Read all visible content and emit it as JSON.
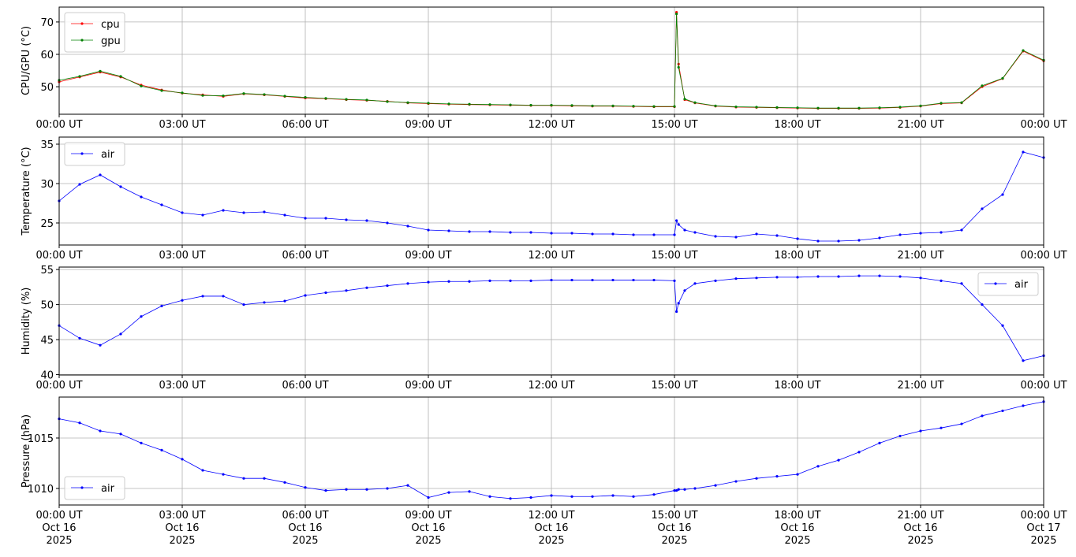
{
  "chart_data": [
    {
      "type": "line",
      "ylabel": "CPU/GPU (°C)",
      "grid": true,
      "legend": "upper left",
      "xlim": [
        "2025-10-16T00:00",
        "2025-10-17T00:00"
      ],
      "xticks": [
        {
          "value": "2025-10-16T00:00",
          "label": "00:00 UT"
        },
        {
          "value": "2025-10-16T03:00",
          "label": "03:00 UT"
        },
        {
          "value": "2025-10-16T06:00",
          "label": "06:00 UT"
        },
        {
          "value": "2025-10-16T09:00",
          "label": "09:00 UT"
        },
        {
          "value": "2025-10-16T12:00",
          "label": "12:00 UT"
        },
        {
          "value": "2025-10-16T15:00",
          "label": "15:00 UT"
        },
        {
          "value": "2025-10-16T18:00",
          "label": "18:00 UT"
        },
        {
          "value": "2025-10-16T21:00",
          "label": "21:00 UT"
        },
        {
          "value": "2025-10-17T00:00",
          "label": "00:00 UT"
        }
      ],
      "ylim": [
        41.5,
        74.6
      ],
      "yticks": [
        50,
        60,
        70
      ],
      "x": [
        "2025-10-16T00:00",
        "2025-10-16T00:30",
        "2025-10-16T01:00",
        "2025-10-16T01:30",
        "2025-10-16T02:00",
        "2025-10-16T02:30",
        "2025-10-16T03:00",
        "2025-10-16T03:30",
        "2025-10-16T04:00",
        "2025-10-16T04:30",
        "2025-10-16T05:00",
        "2025-10-16T05:30",
        "2025-10-16T06:00",
        "2025-10-16T06:30",
        "2025-10-16T07:00",
        "2025-10-16T07:30",
        "2025-10-16T08:00",
        "2025-10-16T08:30",
        "2025-10-16T09:00",
        "2025-10-16T09:30",
        "2025-10-16T10:00",
        "2025-10-16T10:30",
        "2025-10-16T11:00",
        "2025-10-16T11:30",
        "2025-10-16T12:00",
        "2025-10-16T12:30",
        "2025-10-16T13:00",
        "2025-10-16T13:30",
        "2025-10-16T14:00",
        "2025-10-16T14:30",
        "2025-10-16T15:00",
        "2025-10-16T15:03",
        "2025-10-16T15:06",
        "2025-10-16T15:15",
        "2025-10-16T15:30",
        "2025-10-16T16:00",
        "2025-10-16T16:30",
        "2025-10-16T17:00",
        "2025-10-16T17:30",
        "2025-10-16T18:00",
        "2025-10-16T18:30",
        "2025-10-16T19:00",
        "2025-10-16T19:30",
        "2025-10-16T20:00",
        "2025-10-16T20:30",
        "2025-10-16T21:00",
        "2025-10-16T21:30",
        "2025-10-16T22:00",
        "2025-10-16T22:30",
        "2025-10-16T23:00",
        "2025-10-16T23:30",
        "2025-10-17T00:00"
      ],
      "series": [
        {
          "name": "cpu",
          "color": "#ff0000",
          "values": [
            51.5,
            53,
            54.5,
            53,
            50.5,
            49,
            48,
            47.5,
            47,
            47.8,
            47.5,
            47,
            46.5,
            46.3,
            46,
            45.8,
            45.5,
            45,
            44.8,
            44.6,
            44.5,
            44.4,
            44.3,
            44.2,
            44.2,
            44.1,
            44,
            44,
            43.9,
            43.8,
            43.8,
            73,
            57,
            46,
            45,
            44,
            43.7,
            43.6,
            43.5,
            43.4,
            43.3,
            43.3,
            43.3,
            43.4,
            43.6,
            44,
            44.8,
            45,
            50,
            52.5,
            61,
            58
          ]
        },
        {
          "name": "gpu",
          "color": "#008000",
          "values": [
            52,
            53.2,
            54.8,
            53.2,
            50.2,
            48.8,
            48.1,
            47.3,
            47.2,
            47.9,
            47.6,
            47.1,
            46.7,
            46.4,
            46.1,
            45.9,
            45.4,
            45.1,
            44.9,
            44.7,
            44.6,
            44.5,
            44.4,
            44.3,
            44.3,
            44.2,
            44.1,
            44.1,
            44,
            43.9,
            43.9,
            72.5,
            56,
            46.2,
            45.1,
            44.1,
            43.8,
            43.7,
            43.6,
            43.5,
            43.4,
            43.4,
            43.4,
            43.5,
            43.7,
            44.1,
            44.9,
            45.1,
            50.3,
            52.6,
            61.2,
            58.2
          ]
        }
      ]
    },
    {
      "type": "line",
      "ylabel": "Temperature (°C)",
      "grid": true,
      "legend": "upper left",
      "xlim": [
        "2025-10-16T00:00",
        "2025-10-17T00:00"
      ],
      "xticks": [
        {
          "value": "2025-10-16T00:00",
          "label": "00:00 UT"
        },
        {
          "value": "2025-10-16T03:00",
          "label": "03:00 UT"
        },
        {
          "value": "2025-10-16T06:00",
          "label": "06:00 UT"
        },
        {
          "value": "2025-10-16T09:00",
          "label": "09:00 UT"
        },
        {
          "value": "2025-10-16T12:00",
          "label": "12:00 UT"
        },
        {
          "value": "2025-10-16T15:00",
          "label": "15:00 UT"
        },
        {
          "value": "2025-10-16T18:00",
          "label": "18:00 UT"
        },
        {
          "value": "2025-10-16T21:00",
          "label": "21:00 UT"
        },
        {
          "value": "2025-10-17T00:00",
          "label": "00:00 UT"
        }
      ],
      "ylim": [
        22.2,
        35.9
      ],
      "yticks": [
        25,
        30,
        35
      ],
      "x": [
        "2025-10-16T00:00",
        "2025-10-16T00:30",
        "2025-10-16T01:00",
        "2025-10-16T01:30",
        "2025-10-16T02:00",
        "2025-10-16T02:30",
        "2025-10-16T03:00",
        "2025-10-16T03:30",
        "2025-10-16T04:00",
        "2025-10-16T04:30",
        "2025-10-16T05:00",
        "2025-10-16T05:30",
        "2025-10-16T06:00",
        "2025-10-16T06:30",
        "2025-10-16T07:00",
        "2025-10-16T07:30",
        "2025-10-16T08:00",
        "2025-10-16T08:30",
        "2025-10-16T09:00",
        "2025-10-16T09:30",
        "2025-10-16T10:00",
        "2025-10-16T10:30",
        "2025-10-16T11:00",
        "2025-10-16T11:30",
        "2025-10-16T12:00",
        "2025-10-16T12:30",
        "2025-10-16T13:00",
        "2025-10-16T13:30",
        "2025-10-16T14:00",
        "2025-10-16T14:30",
        "2025-10-16T15:00",
        "2025-10-16T15:03",
        "2025-10-16T15:06",
        "2025-10-16T15:15",
        "2025-10-16T15:30",
        "2025-10-16T16:00",
        "2025-10-16T16:30",
        "2025-10-16T17:00",
        "2025-10-16T17:30",
        "2025-10-16T18:00",
        "2025-10-16T18:30",
        "2025-10-16T19:00",
        "2025-10-16T19:30",
        "2025-10-16T20:00",
        "2025-10-16T20:30",
        "2025-10-16T21:00",
        "2025-10-16T21:30",
        "2025-10-16T22:00",
        "2025-10-16T22:30",
        "2025-10-16T23:00",
        "2025-10-16T23:30",
        "2025-10-17T00:00"
      ],
      "series": [
        {
          "name": "air",
          "color": "#0000ff",
          "values": [
            27.8,
            29.9,
            31.1,
            29.6,
            28.3,
            27.3,
            26.3,
            26.0,
            26.6,
            26.3,
            26.4,
            26.0,
            25.6,
            25.6,
            25.4,
            25.3,
            25.0,
            24.6,
            24.1,
            24.0,
            23.9,
            23.9,
            23.8,
            23.8,
            23.7,
            23.7,
            23.6,
            23.6,
            23.5,
            23.5,
            23.5,
            25.3,
            24.8,
            24.1,
            23.8,
            23.3,
            23.2,
            23.6,
            23.4,
            23.0,
            22.7,
            22.7,
            22.8,
            23.1,
            23.5,
            23.7,
            23.8,
            24.1,
            26.8,
            28.6,
            34.0,
            33.3
          ]
        }
      ]
    },
    {
      "type": "line",
      "ylabel": "Humidity (%)",
      "grid": true,
      "legend": "upper right",
      "xlim": [
        "2025-10-16T00:00",
        "2025-10-17T00:00"
      ],
      "xticks": [
        {
          "value": "2025-10-16T00:00",
          "label": "00:00 UT"
        },
        {
          "value": "2025-10-16T03:00",
          "label": "03:00 UT"
        },
        {
          "value": "2025-10-16T06:00",
          "label": "06:00 UT"
        },
        {
          "value": "2025-10-16T09:00",
          "label": "09:00 UT"
        },
        {
          "value": "2025-10-16T12:00",
          "label": "12:00 UT"
        },
        {
          "value": "2025-10-16T15:00",
          "label": "15:00 UT"
        },
        {
          "value": "2025-10-16T18:00",
          "label": "18:00 UT"
        },
        {
          "value": "2025-10-16T21:00",
          "label": "21:00 UT"
        },
        {
          "value": "2025-10-17T00:00",
          "label": "00:00 UT"
        }
      ],
      "ylim": [
        39.95,
        55.35
      ],
      "yticks": [
        40,
        45,
        50,
        55
      ],
      "x": [
        "2025-10-16T00:00",
        "2025-10-16T00:30",
        "2025-10-16T01:00",
        "2025-10-16T01:30",
        "2025-10-16T02:00",
        "2025-10-16T02:30",
        "2025-10-16T03:00",
        "2025-10-16T03:30",
        "2025-10-16T04:00",
        "2025-10-16T04:30",
        "2025-10-16T05:00",
        "2025-10-16T05:30",
        "2025-10-16T06:00",
        "2025-10-16T06:30",
        "2025-10-16T07:00",
        "2025-10-16T07:30",
        "2025-10-16T08:00",
        "2025-10-16T08:30",
        "2025-10-16T09:00",
        "2025-10-16T09:30",
        "2025-10-16T10:00",
        "2025-10-16T10:30",
        "2025-10-16T11:00",
        "2025-10-16T11:30",
        "2025-10-16T12:00",
        "2025-10-16T12:30",
        "2025-10-16T13:00",
        "2025-10-16T13:30",
        "2025-10-16T14:00",
        "2025-10-16T14:30",
        "2025-10-16T15:00",
        "2025-10-16T15:03",
        "2025-10-16T15:06",
        "2025-10-16T15:15",
        "2025-10-16T15:30",
        "2025-10-16T16:00",
        "2025-10-16T16:30",
        "2025-10-16T17:00",
        "2025-10-16T17:30",
        "2025-10-16T18:00",
        "2025-10-16T18:30",
        "2025-10-16T19:00",
        "2025-10-16T19:30",
        "2025-10-16T20:00",
        "2025-10-16T20:30",
        "2025-10-16T21:00",
        "2025-10-16T21:30",
        "2025-10-16T22:00",
        "2025-10-16T22:30",
        "2025-10-16T23:00",
        "2025-10-16T23:30",
        "2025-10-17T00:00"
      ],
      "series": [
        {
          "name": "air",
          "color": "#0000ff",
          "values": [
            47,
            45.2,
            44.2,
            45.8,
            48.3,
            49.8,
            50.6,
            51.2,
            51.2,
            50.0,
            50.3,
            50.5,
            51.3,
            51.7,
            52.0,
            52.4,
            52.7,
            53.0,
            53.2,
            53.3,
            53.3,
            53.4,
            53.4,
            53.4,
            53.5,
            53.5,
            53.5,
            53.5,
            53.5,
            53.5,
            53.4,
            49,
            50.2,
            52,
            53,
            53.4,
            53.7,
            53.8,
            53.9,
            53.9,
            54.0,
            54.0,
            54.1,
            54.1,
            54.0,
            53.8,
            53.4,
            53.0,
            50.0,
            47.0,
            42.0,
            42.7
          ]
        }
      ]
    },
    {
      "type": "line",
      "ylabel": "Pressure (hPa)",
      "grid": true,
      "legend": "lower left",
      "xlim": [
        "2025-10-16T00:00",
        "2025-10-17T00:00"
      ],
      "xticks": [
        {
          "value": "2025-10-16T00:00",
          "label": "00:00 UT\nOct 16\n2025"
        },
        {
          "value": "2025-10-16T03:00",
          "label": "03:00 UT\nOct 16\n2025"
        },
        {
          "value": "2025-10-16T06:00",
          "label": "06:00 UT\nOct 16\n2025"
        },
        {
          "value": "2025-10-16T09:00",
          "label": "09:00 UT\nOct 16\n2025"
        },
        {
          "value": "2025-10-16T12:00",
          "label": "12:00 UT\nOct 16\n2025"
        },
        {
          "value": "2025-10-16T15:00",
          "label": "15:00 UT\nOct 16\n2025"
        },
        {
          "value": "2025-10-16T18:00",
          "label": "18:00 UT\nOct 16\n2025"
        },
        {
          "value": "2025-10-16T21:00",
          "label": "21:00 UT\nOct 16\n2025"
        },
        {
          "value": "2025-10-17T00:00",
          "label": "00:00 UT\nOct 17\n2025"
        }
      ],
      "ylim": [
        1008.36,
        1019.06
      ],
      "yticks": [
        1010,
        1015
      ],
      "x": [
        "2025-10-16T00:00",
        "2025-10-16T00:30",
        "2025-10-16T01:00",
        "2025-10-16T01:30",
        "2025-10-16T02:00",
        "2025-10-16T02:30",
        "2025-10-16T03:00",
        "2025-10-16T03:30",
        "2025-10-16T04:00",
        "2025-10-16T04:30",
        "2025-10-16T05:00",
        "2025-10-16T05:30",
        "2025-10-16T06:00",
        "2025-10-16T06:30",
        "2025-10-16T07:00",
        "2025-10-16T07:30",
        "2025-10-16T08:00",
        "2025-10-16T08:30",
        "2025-10-16T09:00",
        "2025-10-16T09:30",
        "2025-10-16T10:00",
        "2025-10-16T10:30",
        "2025-10-16T11:00",
        "2025-10-16T11:30",
        "2025-10-16T12:00",
        "2025-10-16T12:30",
        "2025-10-16T13:00",
        "2025-10-16T13:30",
        "2025-10-16T14:00",
        "2025-10-16T14:30",
        "2025-10-16T15:00",
        "2025-10-16T15:03",
        "2025-10-16T15:06",
        "2025-10-16T15:15",
        "2025-10-16T15:30",
        "2025-10-16T16:00",
        "2025-10-16T16:30",
        "2025-10-16T17:00",
        "2025-10-16T17:30",
        "2025-10-16T18:00",
        "2025-10-16T18:30",
        "2025-10-16T19:00",
        "2025-10-16T19:30",
        "2025-10-16T20:00",
        "2025-10-16T20:30",
        "2025-10-16T21:00",
        "2025-10-16T21:30",
        "2025-10-16T22:00",
        "2025-10-16T22:30",
        "2025-10-16T23:00",
        "2025-10-16T23:30",
        "2025-10-17T00:00"
      ],
      "series": [
        {
          "name": "air",
          "color": "#0000ff",
          "values": [
            1016.9,
            1016.5,
            1015.7,
            1015.4,
            1014.5,
            1013.8,
            1012.9,
            1011.8,
            1011.4,
            1011.0,
            1011.0,
            1010.6,
            1010.1,
            1009.8,
            1009.9,
            1009.9,
            1010.0,
            1010.3,
            1009.1,
            1009.6,
            1009.7,
            1009.2,
            1009.0,
            1009.1,
            1009.3,
            1009.2,
            1009.2,
            1009.3,
            1009.2,
            1009.4,
            1009.8,
            1009.8,
            1009.9,
            1009.9,
            1010.0,
            1010.3,
            1010.7,
            1011.0,
            1011.2,
            1011.4,
            1012.2,
            1012.8,
            1013.6,
            1014.5,
            1015.2,
            1015.7,
            1016.0,
            1016.4,
            1017.2,
            1017.7,
            1018.2,
            1018.6
          ]
        }
      ]
    }
  ]
}
